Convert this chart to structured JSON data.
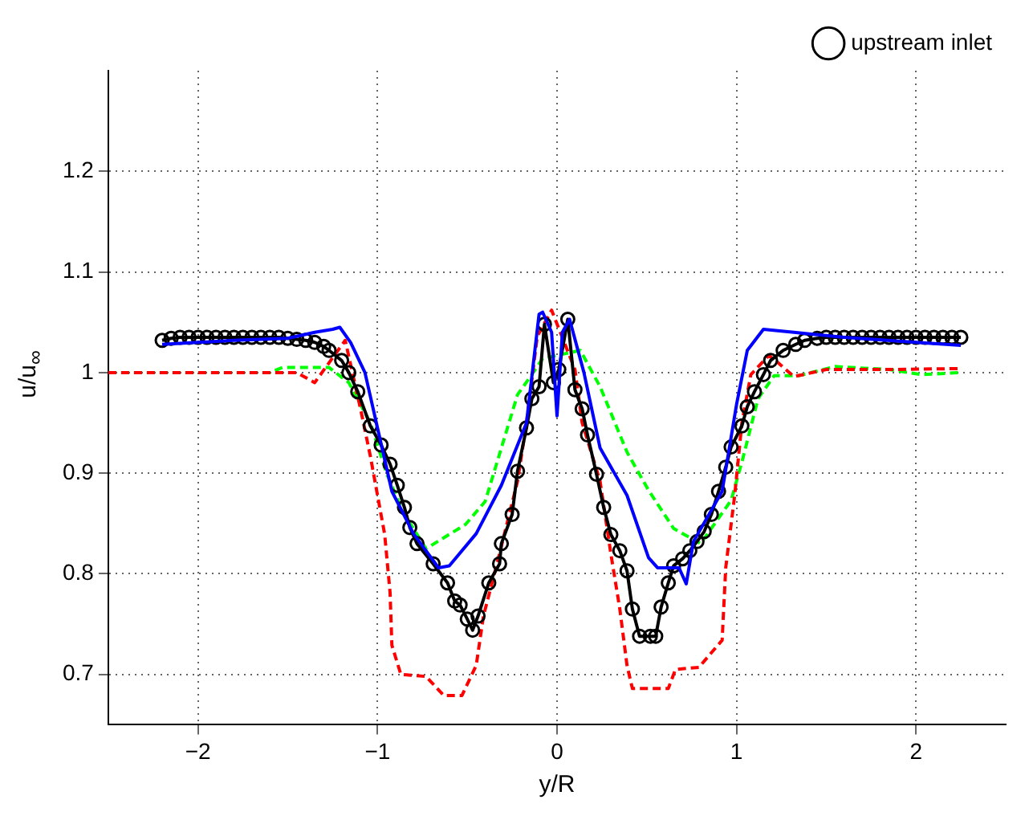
{
  "chart_data": {
    "type": "line",
    "xlabel": "y/R",
    "ylabel": "u/u$_{∞}$",
    "xlim": [
      -2.5,
      2.5
    ],
    "ylim": [
      0.65,
      1.3
    ],
    "xticks": [
      -2,
      -1,
      0,
      1,
      2
    ],
    "yticks": [
      0.7,
      0.8,
      0.9,
      1,
      1.1,
      1.2
    ],
    "grid": true,
    "legend": "top right",
    "series": [
      {
        "color": "#0000ff",
        "line_style": "solid",
        "marker": "none",
        "x": [
          -2.2,
          -1.8,
          -1.5,
          -1.35,
          -1.25,
          -1.21,
          -1.15,
          -1.07,
          -0.92,
          -0.8,
          -0.66,
          -0.6,
          -0.45,
          -0.31,
          -0.17,
          -0.1,
          -0.08,
          -0.03,
          0.0,
          0.03,
          0.07,
          0.15,
          0.24,
          0.39,
          0.51,
          0.56,
          0.68,
          0.72,
          0.76,
          0.92,
          1.0,
          1.06,
          1.15,
          1.32,
          1.6,
          2.0,
          2.25
        ],
        "values": [
          1.028,
          1.032,
          1.034,
          1.04,
          1.043,
          1.045,
          1.03,
          1.0,
          0.882,
          0.84,
          0.806,
          0.808,
          0.84,
          0.888,
          0.95,
          1.058,
          1.06,
          1.04,
          0.957,
          1.04,
          1.053,
          1.0,
          0.925,
          0.878,
          0.816,
          0.806,
          0.806,
          0.79,
          0.832,
          0.882,
          0.968,
          1.022,
          1.043,
          1.04,
          1.035,
          1.03,
          1.027
        ]
      },
      {
        "name": "upstream inlet",
        "color": "#000000",
        "line_style": "solid",
        "marker": "circle",
        "x": [
          -2.2,
          -2.15,
          -2.1,
          -2.05,
          -2.0,
          -1.95,
          -1.9,
          -1.85,
          -1.8,
          -1.75,
          -1.7,
          -1.65,
          -1.6,
          -1.55,
          -1.5,
          -1.45,
          -1.4,
          -1.35,
          -1.3,
          -1.27,
          -1.2,
          -1.16,
          -1.11,
          -1.04,
          -0.98,
          -0.93,
          -0.89,
          -0.85,
          -0.82,
          -0.78,
          -0.69,
          -0.61,
          -0.57,
          -0.54,
          -0.5,
          -0.47,
          -0.44,
          -0.38,
          -0.32,
          -0.31,
          -0.25,
          -0.22,
          -0.17,
          -0.14,
          -0.1,
          -0.07,
          -0.02,
          0.01,
          0.06,
          0.1,
          0.14,
          0.17,
          0.22,
          0.26,
          0.3,
          0.35,
          0.39,
          0.42,
          0.46,
          0.52,
          0.55,
          0.58,
          0.62,
          0.65,
          0.7,
          0.74,
          0.78,
          0.82,
          0.86,
          0.9,
          0.94,
          0.97,
          1.03,
          1.06,
          1.1,
          1.15,
          1.19,
          1.26,
          1.33,
          1.38,
          1.45,
          1.5,
          1.55,
          1.6,
          1.65,
          1.7,
          1.75,
          1.8,
          1.85,
          1.9,
          1.95,
          2.0,
          2.05,
          2.1,
          2.15,
          2.2,
          2.25
        ],
        "values": [
          1.032,
          1.034,
          1.035,
          1.035,
          1.035,
          1.035,
          1.035,
          1.035,
          1.035,
          1.035,
          1.035,
          1.035,
          1.035,
          1.035,
          1.034,
          1.033,
          1.032,
          1.03,
          1.026,
          1.022,
          1.012,
          1.0,
          0.981,
          0.947,
          0.928,
          0.909,
          0.888,
          0.866,
          0.846,
          0.83,
          0.81,
          0.791,
          0.773,
          0.769,
          0.755,
          0.744,
          0.758,
          0.791,
          0.81,
          0.83,
          0.859,
          0.902,
          0.945,
          0.974,
          0.986,
          1.048,
          0.99,
          1.003,
          1.053,
          0.983,
          0.964,
          0.938,
          0.899,
          0.866,
          0.839,
          0.823,
          0.803,
          0.765,
          0.738,
          0.738,
          0.738,
          0.767,
          0.791,
          0.808,
          0.815,
          0.823,
          0.832,
          0.842,
          0.859,
          0.882,
          0.906,
          0.926,
          0.947,
          0.966,
          0.981,
          0.998,
          1.012,
          1.022,
          1.028,
          1.032,
          1.034,
          1.035,
          1.035,
          1.035,
          1.035,
          1.035,
          1.035,
          1.035,
          1.035,
          1.035,
          1.035,
          1.035,
          1.035,
          1.035,
          1.035,
          1.035,
          1.035
        ]
      },
      {
        "color": "#ff0000",
        "line_style": "dashed",
        "marker": "none",
        "x": [
          -2.5,
          -1.45,
          -1.35,
          -1.18,
          -1.09,
          -1.04,
          -0.96,
          -0.93,
          -0.92,
          -0.87,
          -0.73,
          -0.63,
          -0.53,
          -0.45,
          -0.41,
          -0.34,
          -0.22,
          -0.17,
          -0.11,
          -0.03,
          0.1,
          0.14,
          0.24,
          0.3,
          0.35,
          0.39,
          0.42,
          0.62,
          0.66,
          0.79,
          0.92,
          0.94,
          0.99,
          1.03,
          1.08,
          1.18,
          1.23,
          1.32,
          1.5,
          1.85,
          2.25
        ],
        "values": [
          1.0,
          1.0,
          0.99,
          1.032,
          0.96,
          0.917,
          0.839,
          0.781,
          0.729,
          0.7,
          0.698,
          0.679,
          0.679,
          0.709,
          0.758,
          0.806,
          0.892,
          0.95,
          1.036,
          1.062,
          1.003,
          0.95,
          0.892,
          0.82,
          0.765,
          0.709,
          0.686,
          0.686,
          0.705,
          0.707,
          0.734,
          0.806,
          0.878,
          0.95,
          0.998,
          1.017,
          1.01,
          0.996,
          1.003,
          1.003,
          1.004
        ]
      },
      {
        "color": "#00ff00",
        "line_style": "dashed",
        "marker": "none",
        "x": [
          -2.5,
          -1.6,
          -1.53,
          -1.27,
          -1.16,
          -1.04,
          -0.95,
          -0.86,
          -0.73,
          -0.51,
          -0.4,
          -0.31,
          -0.22,
          -0.14,
          -0.08,
          0.13,
          0.24,
          0.39,
          0.51,
          0.65,
          0.8,
          0.97,
          1.03,
          1.12,
          1.21,
          1.35,
          1.55,
          1.85,
          2.03,
          2.25
        ],
        "values": [
          1.0,
          1.0,
          1.005,
          1.005,
          0.99,
          0.95,
          0.9,
          0.862,
          0.825,
          0.849,
          0.872,
          0.925,
          0.978,
          0.998,
          1.014,
          1.022,
          0.986,
          0.921,
          0.883,
          0.845,
          0.83,
          0.873,
          0.911,
          0.974,
          0.997,
          0.997,
          1.006,
          1.003,
          0.998,
          1.0
        ]
      }
    ]
  }
}
